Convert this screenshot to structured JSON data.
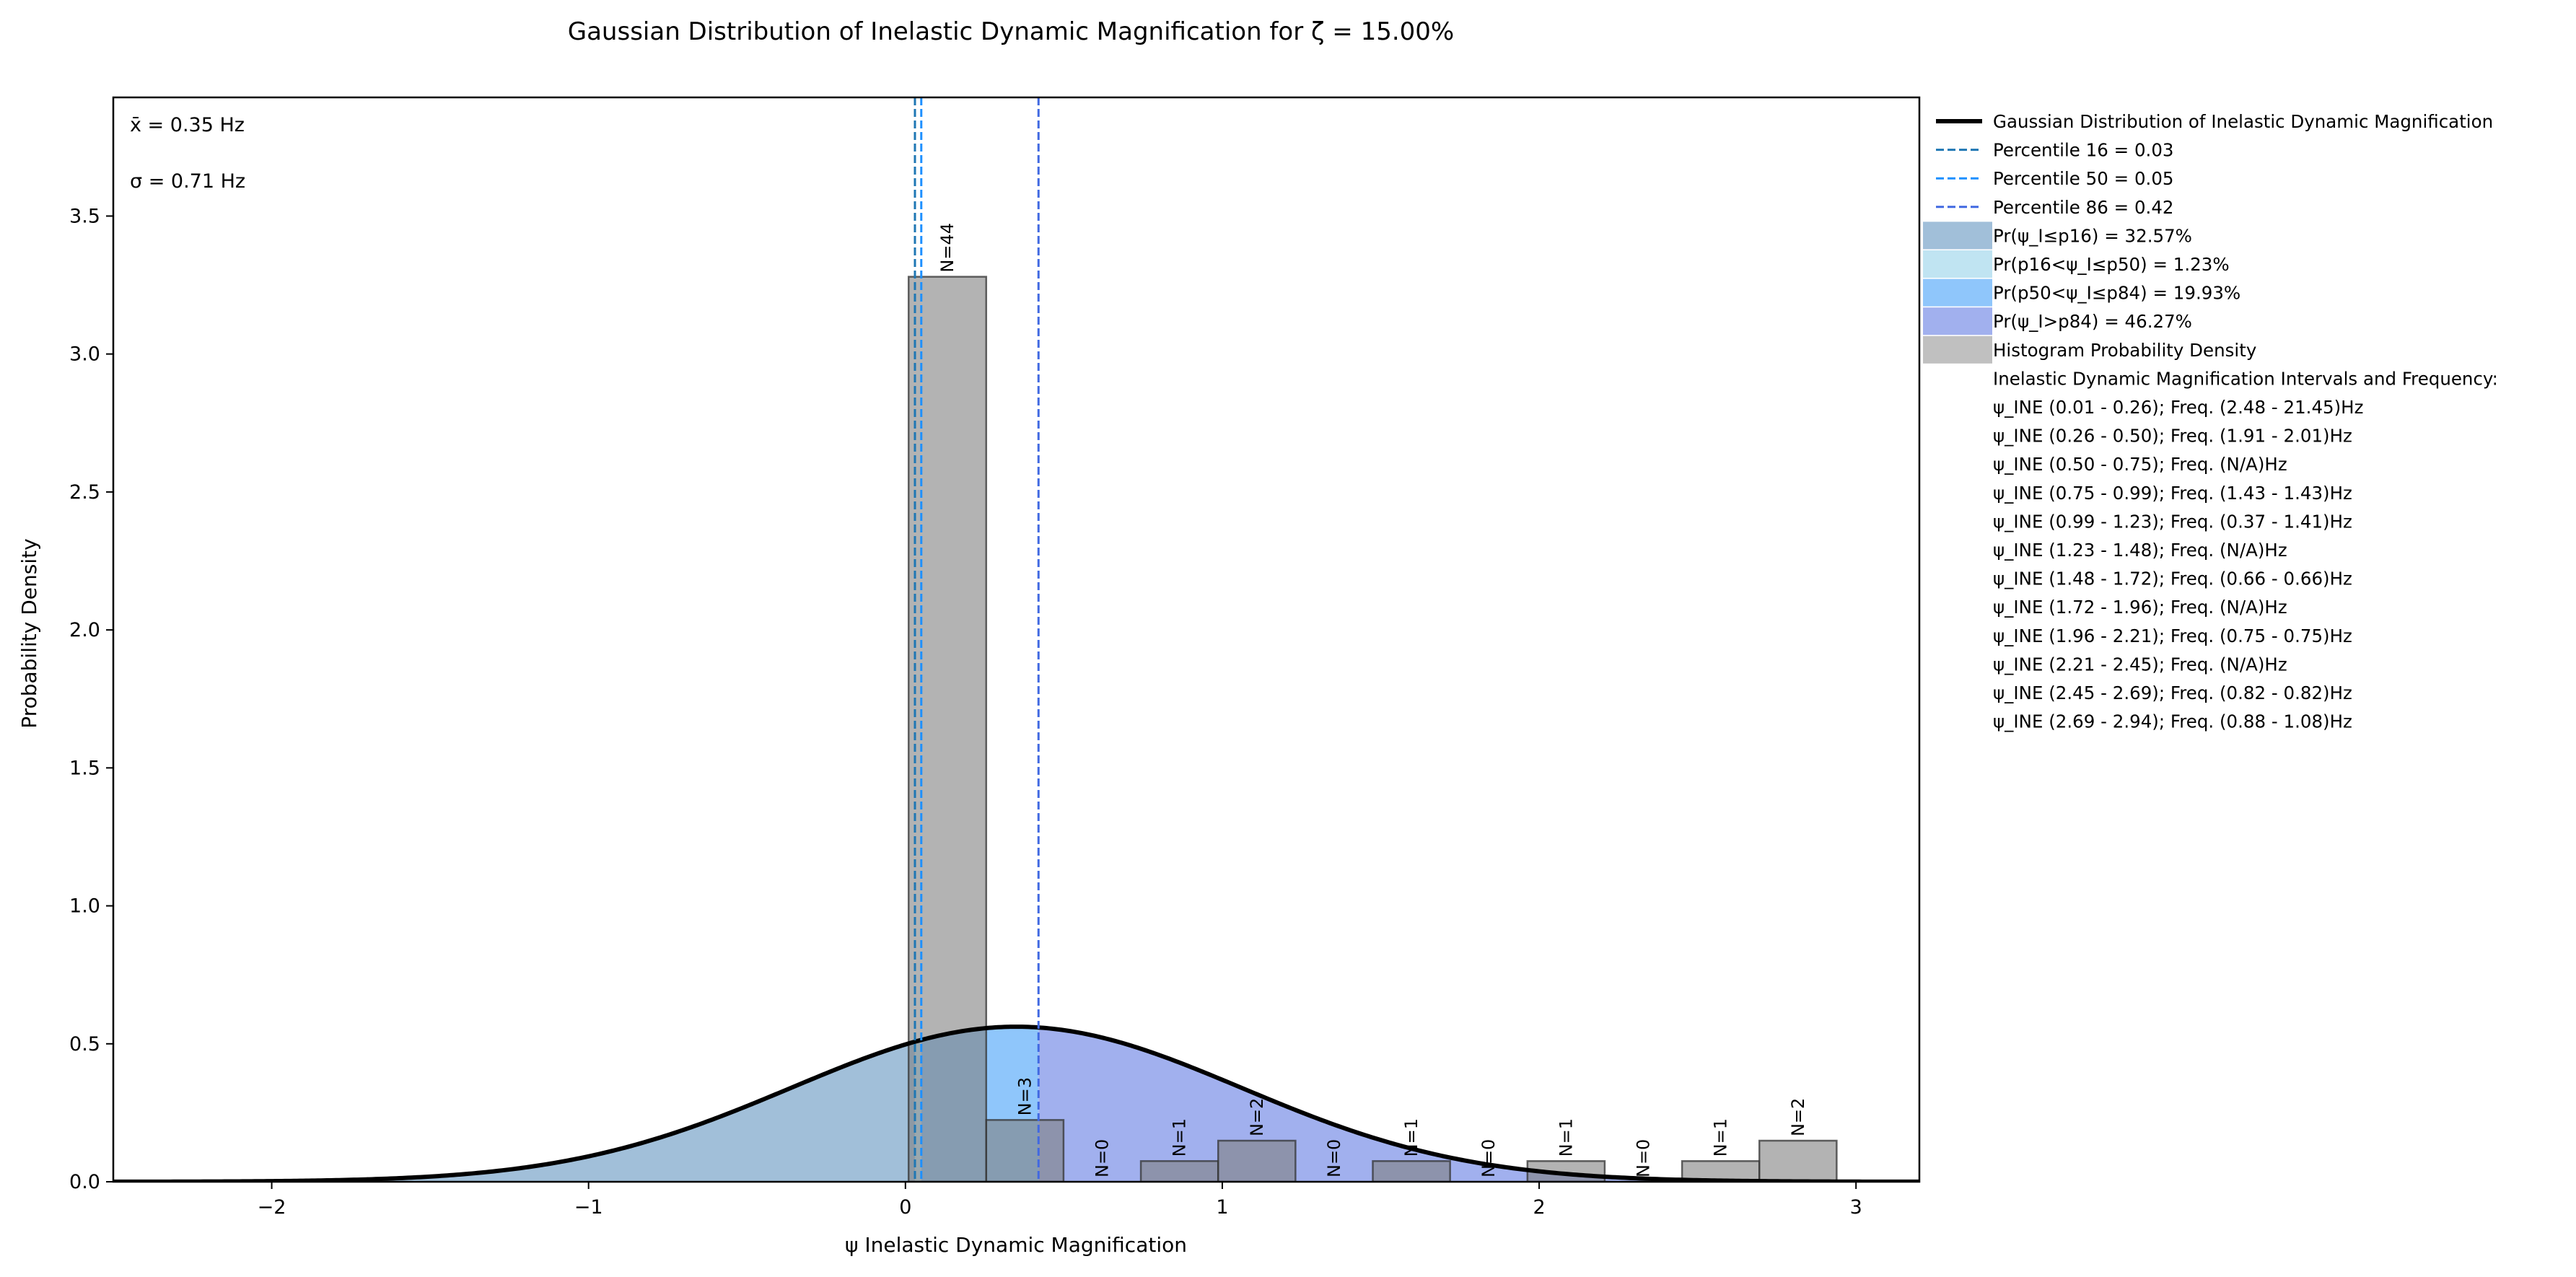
{
  "chart_data": {
    "type": "histogram",
    "title": "Gaussian Distribution of Inelastic Dynamic Magnification for ζ = 15.00%",
    "xlabel": "ψ  Inelastic Dynamic Magnification",
    "ylabel": "Probability Density",
    "xlim": [
      -2.5,
      3.2
    ],
    "ylim": [
      0,
      3.93
    ],
    "xticks": [
      -2,
      -1,
      0,
      1,
      2,
      3
    ],
    "xtick_labels": [
      "−2",
      "−1",
      "0",
      "1",
      "2",
      "3"
    ],
    "yticks": [
      0,
      0.5,
      1,
      1.5,
      2,
      2.5,
      3,
      3.5
    ],
    "ytick_labels": [
      "0.0",
      "0.5",
      "1.0",
      "1.5",
      "2.0",
      "2.5",
      "3.0",
      "3.5"
    ],
    "grid": false,
    "stats": {
      "mean_label": "x̄ = 0.35 Hz",
      "std_label": "σ = 0.71 Hz"
    },
    "gaussian": {
      "mean": 0.35,
      "std": 0.71,
      "color": "#000000"
    },
    "percentiles": [
      {
        "name": "Percentile 16 = 0.03",
        "value": 0.03,
        "color": "#1f77b4"
      },
      {
        "name": "Percentile 50 = 0.05",
        "value": 0.05,
        "color": "#1e90ff"
      },
      {
        "name": "Percentile 86 = 0.42",
        "value": 0.42,
        "color": "#4169e1"
      }
    ],
    "regions": [
      {
        "name": "Pr(ψ_I≤p16) = 32.57%",
        "from": -2.5,
        "to": 0.03,
        "color": "#a1bfd9"
      },
      {
        "name": "Pr(p16<ψ_I≤p50) = 1.23%",
        "from": 0.03,
        "to": 0.05,
        "color": "#c0e4f2"
      },
      {
        "name": "Pr(p50<ψ_I≤p84) = 19.93%",
        "from": 0.05,
        "to": 0.42,
        "color": "#8fc6fb"
      },
      {
        "name": "Pr(ψ_I>p84) = 46.27%",
        "from": 0.42,
        "to": 3.2,
        "color": "#a1b0ee"
      }
    ],
    "histogram": {
      "name": "Histogram Probability Density",
      "bin_edges": [
        0.01,
        0.255,
        0.499,
        0.743,
        0.987,
        1.231,
        1.475,
        1.719,
        1.963,
        2.207,
        2.451,
        2.695,
        2.939
      ],
      "densities": [
        3.28,
        0.224,
        0,
        0.075,
        0.149,
        0,
        0.075,
        0,
        0.075,
        0,
        0.075,
        0.149
      ],
      "counts": [
        "N=44",
        "N=3",
        "N=0",
        "N=1",
        "N=2",
        "N=0",
        "N=1",
        "N=0",
        "N=1",
        "N=0",
        "N=1",
        "N=2"
      ],
      "color": "#808080"
    },
    "legend": {
      "location": "outside-right",
      "gaussian_label": "Gaussian Distribution of Inelastic Dynamic Magnification",
      "histogram_label": "Histogram Probability Density",
      "intervals_header": "Inelastic Dynamic Magnification Intervals and Frequency:",
      "intervals": [
        "ψ_INE (0.01 - 0.26); Freq. (2.48 - 21.45)Hz",
        "ψ_INE (0.26 - 0.50); Freq. (1.91 - 2.01)Hz",
        "ψ_INE (0.50 - 0.75); Freq. (N/A)Hz",
        "ψ_INE (0.75 - 0.99); Freq. (1.43 - 1.43)Hz",
        "ψ_INE (0.99 - 1.23); Freq. (0.37 - 1.41)Hz",
        "ψ_INE (1.23 - 1.48); Freq. (N/A)Hz",
        "ψ_INE (1.48 - 1.72); Freq. (0.66 - 0.66)Hz",
        "ψ_INE (1.72 - 1.96); Freq. (N/A)Hz",
        "ψ_INE (1.96 - 2.21); Freq. (0.75 - 0.75)Hz",
        "ψ_INE (2.21 - 2.45); Freq. (N/A)Hz",
        "ψ_INE (2.45 - 2.69); Freq. (0.82 - 0.82)Hz",
        "ψ_INE (2.69 - 2.94); Freq. (0.88 - 1.08)Hz"
      ]
    }
  }
}
